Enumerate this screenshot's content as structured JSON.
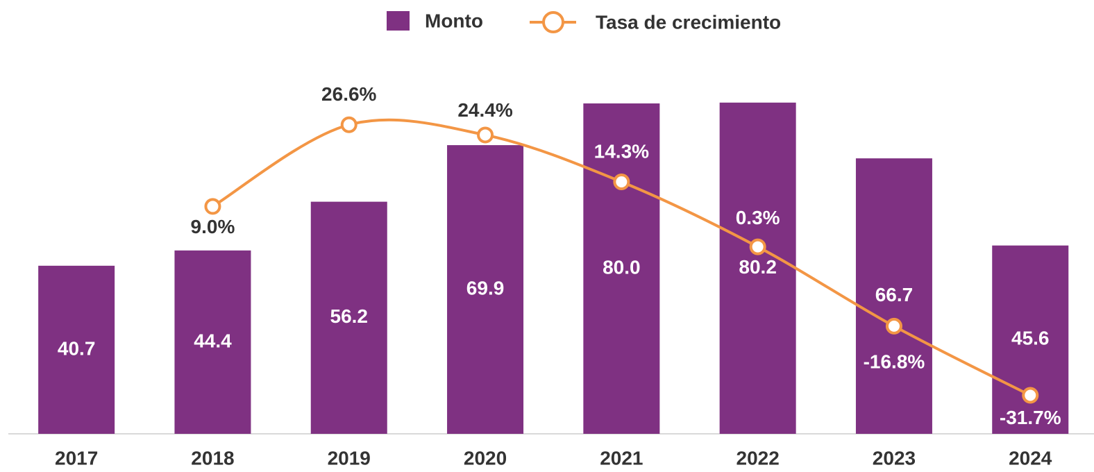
{
  "chart_data": {
    "type": "bar_line",
    "categories": [
      "2017",
      "2018",
      "2019",
      "2020",
      "2021",
      "2022",
      "2023",
      "2024"
    ],
    "series": [
      {
        "name": "Monto",
        "type": "bar",
        "color": "#7f3182",
        "values": [
          40.7,
          44.4,
          56.2,
          69.9,
          80.0,
          80.2,
          66.7,
          45.6
        ],
        "value_labels": [
          "40.7",
          "44.4",
          "56.2",
          "69.9",
          "80.0",
          "80.2",
          "66.7",
          "45.6"
        ]
      },
      {
        "name": "Tasa de crecimiento",
        "type": "line",
        "axis": "y2",
        "color": "#f39645",
        "values": [
          null,
          9.0,
          26.6,
          24.4,
          14.3,
          0.3,
          -16.8,
          -31.7
        ],
        "value_labels": [
          null,
          "9.0%",
          "26.6%",
          "24.4%",
          "14.3%",
          "0.3%",
          "-16.8%",
          "-31.7%"
        ]
      }
    ],
    "ylim": [
      0,
      100
    ],
    "y2lim": [
      -40,
      49
    ],
    "legend": "top"
  }
}
